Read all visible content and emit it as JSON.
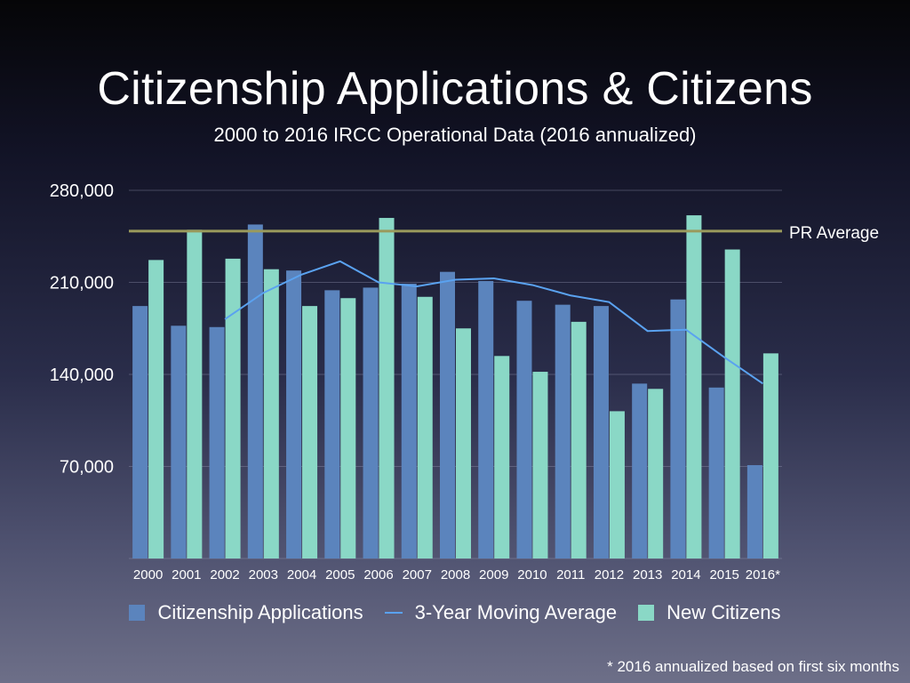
{
  "slide": {
    "title": "Citizenship Applications & Citizens",
    "subtitle": "2000 to 2016 IRCC Operational Data (2016 annualized)",
    "footnote": "* 2016 annualized based on first six months"
  },
  "chart_data": {
    "type": "bar",
    "categories": [
      "2000",
      "2001",
      "2002",
      "2003",
      "2004",
      "2005",
      "2006",
      "2007",
      "2008",
      "2009",
      "2010",
      "2011",
      "2012",
      "2013",
      "2014",
      "2015",
      "2016*"
    ],
    "series": [
      {
        "name": "Citizenship Applications",
        "kind": "bar",
        "color": "#5b84bd",
        "values": [
          192000,
          177000,
          176000,
          254000,
          219000,
          204000,
          206000,
          209000,
          218000,
          211000,
          196000,
          193000,
          192000,
          133000,
          197000,
          130000,
          71000
        ]
      },
      {
        "name": "New Citizens",
        "kind": "bar",
        "color": "#8ad8c6",
        "values": [
          227000,
          250000,
          228000,
          220000,
          192000,
          198000,
          259000,
          199000,
          175000,
          154000,
          142000,
          180000,
          112000,
          129000,
          261000,
          235000,
          156000
        ]
      },
      {
        "name": "3-Year Moving Average",
        "kind": "line",
        "color": "#5aa2f0",
        "values": [
          null,
          null,
          182000,
          202000,
          216000,
          226000,
          210000,
          207000,
          212000,
          213000,
          208000,
          200000,
          195000,
          173000,
          174000,
          153000,
          133000
        ]
      }
    ],
    "reference_line": {
      "label": "PR Average",
      "value": 249000,
      "color": "#9a9a5c"
    },
    "y_ticks": [
      "280,000",
      "210,000",
      "140,000",
      "70,000"
    ],
    "y_tick_values": [
      280000,
      210000,
      140000,
      70000
    ],
    "ylim": [
      0,
      280000
    ],
    "grid": true,
    "legend_position": "bottom"
  }
}
